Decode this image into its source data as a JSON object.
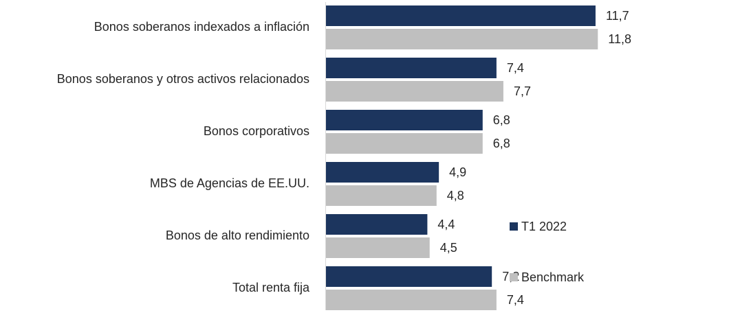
{
  "chart_data": {
    "type": "bar",
    "orientation": "horizontal",
    "categories": [
      "Bonos soberanos indexados a inflación",
      "Bonos soberanos y otros activos relacionados",
      "Bonos corporativos",
      "MBS de Agencias de EE.UU.",
      "Bonos de alto rendimiento",
      "Total renta fija"
    ],
    "series": [
      {
        "name": "T1 2022",
        "color": "#1c355e",
        "values": [
          11.7,
          7.4,
          6.8,
          4.9,
          4.4,
          7.2
        ],
        "value_labels": [
          "11,7",
          "7,4",
          "6,8",
          "4,9",
          "4,4",
          "7,2"
        ]
      },
      {
        "name": "Benchmark",
        "color": "#bfbfbf",
        "values": [
          11.8,
          7.7,
          6.8,
          4.8,
          4.5,
          7.4
        ],
        "value_labels": [
          "11,8",
          "7,7",
          "6,8",
          "4,8",
          "4,5",
          "7,4"
        ]
      }
    ]
  }
}
